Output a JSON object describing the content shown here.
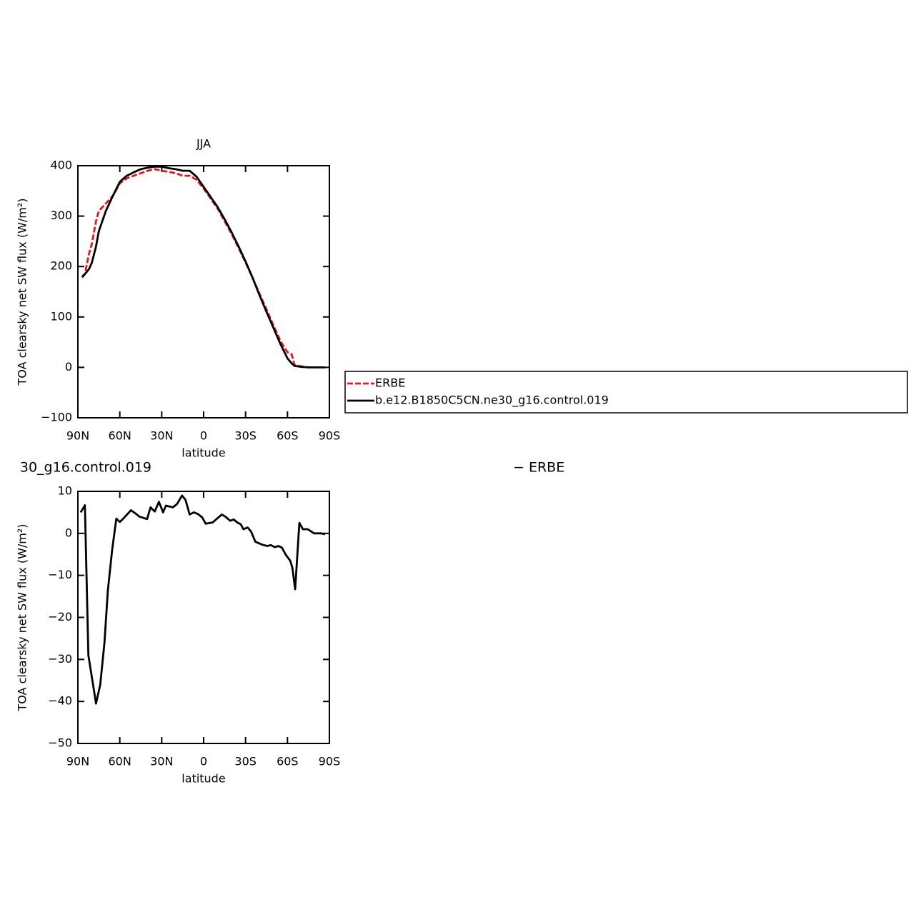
{
  "chart_data": [
    {
      "type": "line",
      "title": "JJA",
      "xlabel": "latitude",
      "ylabel": "TOA clearsky net SW flux (W/m²)",
      "xlim": [
        90,
        -90
      ],
      "ylim": [
        -100,
        400
      ],
      "xticks": [
        {
          "value": 90,
          "label": "90N"
        },
        {
          "value": 60,
          "label": "60N"
        },
        {
          "value": 30,
          "label": "30N"
        },
        0,
        {
          "value": -30,
          "label": "30S"
        },
        {
          "value": -60,
          "label": "60S"
        },
        {
          "value": -90,
          "label": "90S"
        }
      ],
      "yticks": [
        {
          "value": -100,
          "label": "−100"
        },
        0,
        100,
        200,
        300,
        400
      ],
      "legend": "outside-right",
      "x": [
        87,
        85,
        82,
        80,
        77,
        75,
        70,
        65,
        60,
        55,
        50,
        45,
        40,
        35,
        30,
        25,
        20,
        15,
        10,
        5,
        0,
        -5,
        -10,
        -15,
        -20,
        -25,
        -30,
        -35,
        -40,
        -45,
        -50,
        -55,
        -60,
        -63,
        -65,
        -70,
        -75,
        -80,
        -87
      ],
      "series": [
        {
          "name": "ERBE",
          "color": "#e8141c",
          "linestyle": "dashed",
          "values": [
            178,
            185,
            225,
            245,
            290,
            310,
            325,
            340,
            365,
            375,
            380,
            385,
            390,
            393,
            390,
            388,
            385,
            380,
            380,
            372,
            355,
            335,
            315,
            290,
            265,
            237,
            208,
            178,
            146,
            115,
            83,
            52,
            30,
            26,
            5,
            2,
            0,
            0,
            0
          ]
        },
        {
          "name": "b.e12.B1850C5CN.ne30_g16.control.019",
          "color": "#000000",
          "linestyle": "solid",
          "values": [
            180,
            185,
            195,
            208,
            240,
            270,
            310,
            340,
            368,
            380,
            387,
            393,
            396,
            398,
            398,
            395,
            393,
            390,
            390,
            378,
            358,
            338,
            318,
            294,
            268,
            240,
            210,
            178,
            143,
            110,
            78,
            46,
            18,
            8,
            3,
            1,
            0,
            0,
            0
          ]
        }
      ]
    },
    {
      "type": "line",
      "title_left": "30_g16.control.019",
      "title_right": "− ERBE",
      "xlabel": "latitude",
      "ylabel": "TOA clearsky net SW flux (W/m²)",
      "xlim": [
        90,
        -90
      ],
      "ylim": [
        -50,
        10
      ],
      "xticks": [
        {
          "value": 90,
          "label": "90N"
        },
        {
          "value": 60,
          "label": "60N"
        },
        {
          "value": 30,
          "label": "30N"
        },
        0,
        {
          "value": -30,
          "label": "30S"
        },
        {
          "value": -60,
          "label": "60S"
        },
        {
          "value": -90,
          "label": "90S"
        }
      ],
      "yticks": [
        {
          "value": -50,
          "label": "−50"
        },
        {
          "value": -40,
          "label": "−40"
        },
        {
          "value": -30,
          "label": "−30"
        },
        {
          "value": -20,
          "label": "−20"
        },
        {
          "value": -10,
          "label": "−10"
        },
        0,
        10
      ],
      "x": [
        88,
        85,
        82.5,
        77,
        74,
        71,
        68.5,
        65.5,
        62.5,
        60,
        57,
        52,
        49,
        46,
        40.5,
        38,
        35,
        32,
        29,
        27,
        22,
        19,
        15.5,
        13,
        10,
        7,
        4,
        1,
        -1.5,
        -6.5,
        -13,
        -15.5,
        -19,
        -21.5,
        -24.5,
        -26.5,
        -28.5,
        -31.5,
        -34,
        -37,
        -42,
        -45.5,
        -48,
        -51,
        -53.5,
        -56,
        -59,
        -62,
        -63.5,
        -65.5,
        -68.5,
        -71,
        -74.5,
        -79,
        -84,
        -87
      ],
      "series": [
        {
          "color": "#000000",
          "linestyle": "solid",
          "values": [
            5,
            6.7,
            -29,
            -40.5,
            -36,
            -26,
            -13.5,
            -4,
            3.5,
            2.7,
            3.7,
            5.5,
            4.8,
            4,
            3.4,
            6.2,
            5.2,
            7.5,
            5,
            6.6,
            6.2,
            7,
            9,
            8,
            4.5,
            5,
            4.6,
            3.8,
            2.3,
            2.6,
            4.5,
            4,
            3,
            3.3,
            2.5,
            2.2,
            1,
            1.4,
            0.4,
            -2,
            -2.7,
            -3,
            -2.8,
            -3.3,
            -3,
            -3.4,
            -5.2,
            -6.5,
            -8.2,
            -13.3,
            2.5,
            1,
            1,
            0,
            0,
            -0.2
          ]
        }
      ]
    }
  ]
}
